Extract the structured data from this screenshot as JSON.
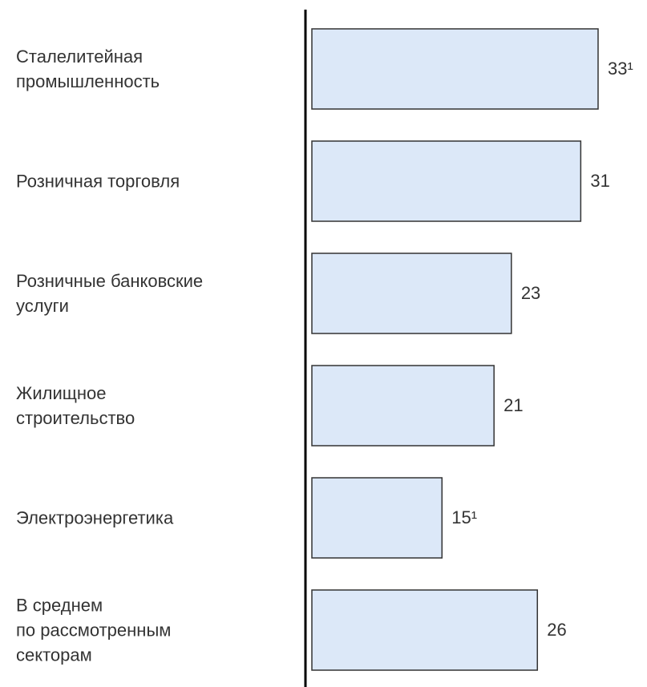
{
  "chart_data": {
    "type": "bar",
    "orientation": "horizontal",
    "categories": [
      "Сталелитейная\nпромышленность",
      "Розничная торговля",
      "Розничные банковские\nуслуги",
      "Жилищное\nстроительство",
      "Электроэнергетика",
      "В среднем\nпо рассмотренным\nсекторам"
    ],
    "values": [
      33,
      31,
      23,
      21,
      15,
      26
    ],
    "value_labels": [
      "33¹",
      "31",
      "23",
      "21",
      "15¹",
      "26"
    ],
    "color": "#dce8f8"
  }
}
